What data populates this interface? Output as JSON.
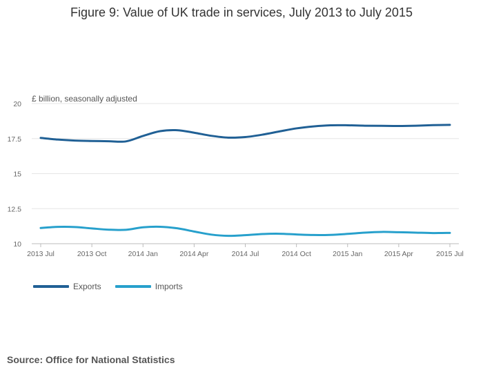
{
  "chart_data": {
    "type": "line",
    "title": "Figure 9: Value of UK trade in services, July 2013 to July 2015",
    "ylabel": "£ billion, seasonally adjusted",
    "xlabel": "",
    "ylim": [
      10,
      20
    ],
    "yticks": [
      {
        "label": "20",
        "value": 20
      },
      {
        "label": "17.5",
        "value": 17.5
      },
      {
        "label": "15",
        "value": 15
      },
      {
        "label": "12.5",
        "value": 12.5
      },
      {
        "label": "10",
        "value": 10
      }
    ],
    "x": [
      "2013 Jul",
      "2013 Aug",
      "2013 Sep",
      "2013 Oct",
      "2013 Nov",
      "2013 Dec",
      "2014 Jan",
      "2014 Feb",
      "2014 Mar",
      "2014 Apr",
      "2014 May",
      "2014 Jun",
      "2014 Jul",
      "2014 Aug",
      "2014 Sep",
      "2014 Oct",
      "2014 Nov",
      "2014 Dec",
      "2015 Jan",
      "2015 Feb",
      "2015 Mar",
      "2015 Apr",
      "2015 May",
      "2015 Jun",
      "2015 Jul"
    ],
    "xticks": [
      {
        "label": "2013 Jul",
        "index": 0
      },
      {
        "label": "2013 Oct",
        "index": 3
      },
      {
        "label": "2014 Jan",
        "index": 6
      },
      {
        "label": "2014 Apr",
        "index": 9
      },
      {
        "label": "2014 Jul",
        "index": 12
      },
      {
        "label": "2014 Oct",
        "index": 15
      },
      {
        "label": "2015 Jan",
        "index": 18
      },
      {
        "label": "2015 Apr",
        "index": 21
      },
      {
        "label": "2015 Jul",
        "index": 24
      }
    ],
    "series": [
      {
        "name": "Exports",
        "color": "#206095",
        "values": [
          17.55,
          17.43,
          17.36,
          17.33,
          17.31,
          17.3,
          17.69,
          18.03,
          18.1,
          17.92,
          17.7,
          17.57,
          17.61,
          17.78,
          18.01,
          18.23,
          18.37,
          18.45,
          18.45,
          18.42,
          18.41,
          18.4,
          18.42,
          18.46,
          18.48
        ]
      },
      {
        "name": "Imports",
        "color": "#27a0cc",
        "values": [
          11.12,
          11.2,
          11.19,
          11.09,
          11.0,
          10.99,
          11.17,
          11.21,
          11.1,
          10.87,
          10.65,
          10.56,
          10.61,
          10.69,
          10.71,
          10.66,
          10.62,
          10.63,
          10.7,
          10.79,
          10.84,
          10.82,
          10.79,
          10.76,
          10.77
        ]
      }
    ]
  },
  "source": "Source: Office for National Statistics"
}
